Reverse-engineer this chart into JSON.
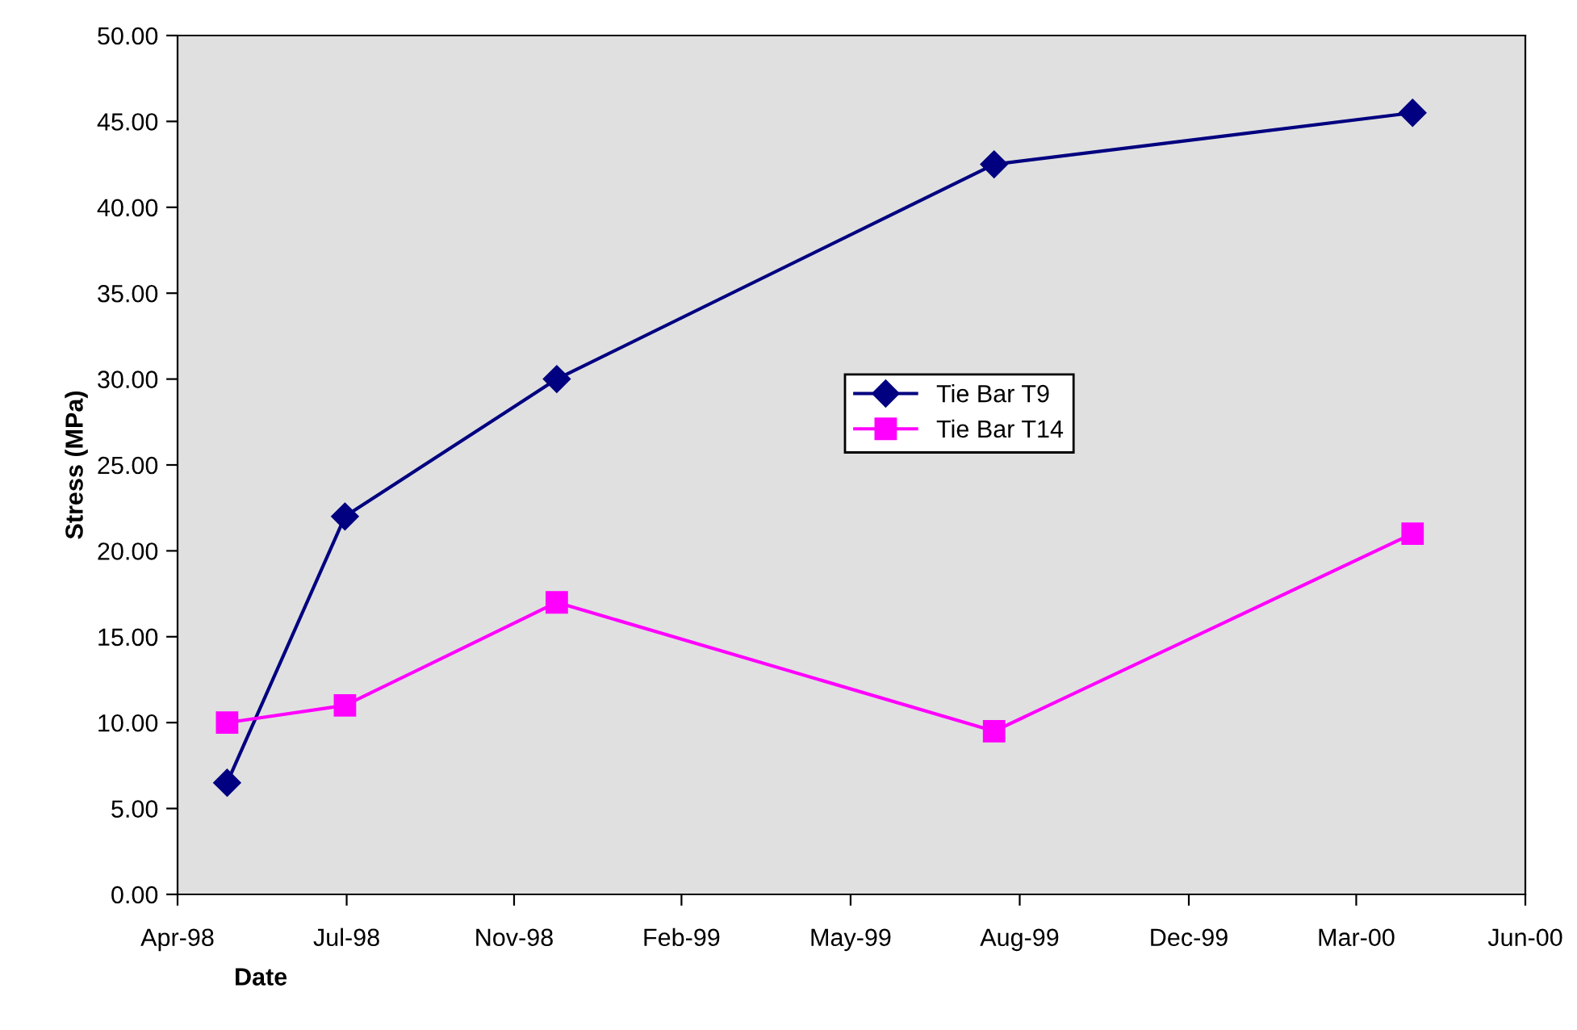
{
  "chart_data": {
    "type": "line",
    "xlabel": "Date",
    "ylabel": "Stress (MPa)",
    "series": [
      {
        "name": "Tie Bar T9",
        "color": "#000080",
        "marker": "diamond",
        "x": [
          "1998-05-19",
          "1998-07-27",
          "1998-11-28",
          "1999-08-11",
          "2000-04-12"
        ],
        "values": [
          6.5,
          22,
          30,
          42.5,
          45.5
        ]
      },
      {
        "name": "Tie Bar T14",
        "color": "#ff00ff",
        "marker": "square",
        "x": [
          "1998-05-19",
          "1998-07-27",
          "1998-11-28",
          "1999-08-11",
          "2000-04-12"
        ],
        "values": [
          10,
          11,
          17,
          9.5,
          21
        ]
      }
    ],
    "xlim": [
      "1998-04-20",
      "2000-06-17"
    ],
    "xticks": [
      {
        "value": "1998-04-20",
        "label": "Apr-98"
      },
      {
        "value": "1998-07-28",
        "label": "Jul-98"
      },
      {
        "value": "1998-11-03",
        "label": "Nov-98"
      },
      {
        "value": "1999-02-09",
        "label": "Feb-99"
      },
      {
        "value": "1999-05-19",
        "label": "May-99"
      },
      {
        "value": "1999-08-26",
        "label": "Aug-99"
      },
      {
        "value": "1999-12-03",
        "label": "Dec-99"
      },
      {
        "value": "2000-03-10",
        "label": "Mar-00"
      },
      {
        "value": "2000-06-17",
        "label": "Jun-00"
      }
    ],
    "ylim": [
      0,
      50
    ],
    "yticks": [
      {
        "value": 0,
        "label": "0.00"
      },
      {
        "value": 5,
        "label": "5.00"
      },
      {
        "value": 10,
        "label": "10.00"
      },
      {
        "value": 15,
        "label": "15.00"
      },
      {
        "value": 20,
        "label": "20.00"
      },
      {
        "value": 25,
        "label": "25.00"
      },
      {
        "value": 30,
        "label": "30.00"
      },
      {
        "value": 35,
        "label": "35.00"
      },
      {
        "value": 40,
        "label": "40.00"
      },
      {
        "value": 45,
        "label": "45.00"
      },
      {
        "value": 50,
        "label": "50.00"
      }
    ],
    "grid": false,
    "legend": "center",
    "line_style": "solid"
  }
}
